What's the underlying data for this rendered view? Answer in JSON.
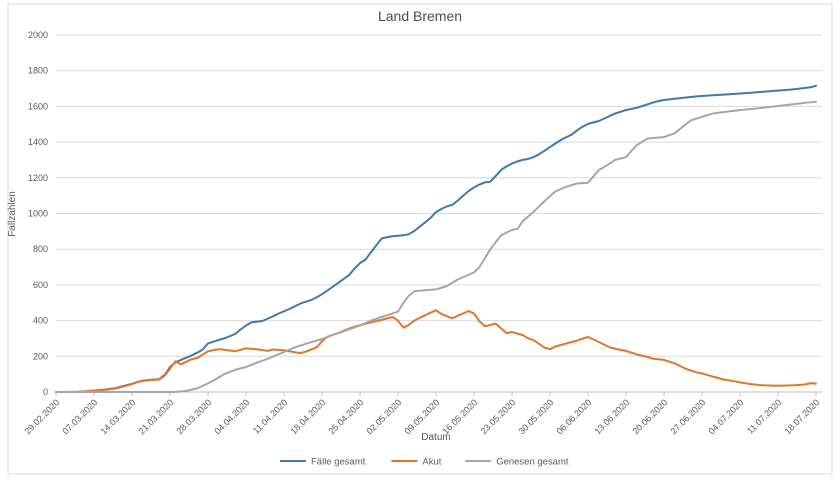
{
  "window": {
    "background_color": "#ffffff",
    "frame_border_color": "#d9d9d9"
  },
  "styles": {
    "gridline_color": "#d9d9d9",
    "axis_line_color": "#bfbfbf",
    "text_color": "#595959",
    "line_width": 2
  },
  "chart_data": {
    "type": "line",
    "title": "Land Bremen",
    "xlabel": "Datum",
    "ylabel": "Fallzahlen",
    "ylim": [
      0,
      2000
    ],
    "y_tick_step": 200,
    "y_tick_labels": [
      "0",
      "200",
      "400",
      "600",
      "800",
      "1000",
      "1200",
      "1400",
      "1600",
      "1800",
      "2000"
    ],
    "x_tick_labels": [
      "29.02.2020",
      "07.03.2020",
      "14.03.2020",
      "21.03.2020",
      "28.03.2020",
      "04.04.2020",
      "11.04.2020",
      "18.04.2020",
      "25.04.2020",
      "02.05.2020",
      "09.05.2020",
      "16.05.2020",
      "23.05.2020",
      "30.05.2020",
      "06.06.2020",
      "13.06.2020",
      "20.06.2020",
      "27.06.2020",
      "04.07.2020",
      "11.07.2020",
      "18.07.2020"
    ],
    "x_ticks_days": [
      0,
      7,
      14,
      21,
      28,
      35,
      42,
      49,
      56,
      63,
      70,
      77,
      84,
      91,
      98,
      105,
      112,
      119,
      126,
      133,
      140
    ],
    "x_domain_days": [
      0,
      140
    ],
    "grid": "horizontal",
    "legend_position": "bottom",
    "series": [
      {
        "name": "Fälle gesamt",
        "color": "#4179ab",
        "points": [
          [
            0,
            0
          ],
          [
            4,
            1
          ],
          [
            5,
            3
          ],
          [
            7,
            8
          ],
          [
            9,
            14
          ],
          [
            11,
            22
          ],
          [
            12,
            30
          ],
          [
            14,
            46
          ],
          [
            15,
            56
          ],
          [
            16,
            64
          ],
          [
            17,
            67
          ],
          [
            19,
            72
          ],
          [
            20,
            95
          ],
          [
            21,
            140
          ],
          [
            22,
            165
          ],
          [
            23,
            180
          ],
          [
            25,
            205
          ],
          [
            26,
            220
          ],
          [
            27,
            238
          ],
          [
            28,
            272
          ],
          [
            29,
            282
          ],
          [
            30,
            292
          ],
          [
            31,
            300
          ],
          [
            33,
            325
          ],
          [
            34,
            350
          ],
          [
            35,
            372
          ],
          [
            36,
            390
          ],
          [
            38,
            398
          ],
          [
            40,
            424
          ],
          [
            41,
            440
          ],
          [
            43,
            465
          ],
          [
            44,
            480
          ],
          [
            45,
            495
          ],
          [
            47,
            515
          ],
          [
            48,
            530
          ],
          [
            49,
            548
          ],
          [
            50,
            568
          ],
          [
            51,
            590
          ],
          [
            52,
            612
          ],
          [
            54,
            655
          ],
          [
            55,
            692
          ],
          [
            56,
            722
          ],
          [
            57,
            742
          ],
          [
            58,
            782
          ],
          [
            59,
            822
          ],
          [
            60,
            860
          ],
          [
            61,
            868
          ],
          [
            62,
            872
          ],
          [
            64,
            878
          ],
          [
            65,
            884
          ],
          [
            66,
            902
          ],
          [
            67,
            926
          ],
          [
            68,
            950
          ],
          [
            69,
            976
          ],
          [
            70,
            1008
          ],
          [
            71,
            1026
          ],
          [
            72,
            1040
          ],
          [
            73,
            1048
          ],
          [
            74,
            1072
          ],
          [
            75,
            1100
          ],
          [
            76,
            1126
          ],
          [
            77,
            1146
          ],
          [
            78,
            1162
          ],
          [
            79,
            1174
          ],
          [
            80,
            1178
          ],
          [
            81,
            1210
          ],
          [
            82,
            1244
          ],
          [
            83,
            1264
          ],
          [
            84,
            1280
          ],
          [
            85,
            1292
          ],
          [
            86,
            1300
          ],
          [
            87,
            1306
          ],
          [
            88,
            1316
          ],
          [
            89,
            1332
          ],
          [
            90,
            1352
          ],
          [
            91,
            1372
          ],
          [
            92,
            1392
          ],
          [
            93,
            1412
          ],
          [
            94,
            1428
          ],
          [
            95,
            1442
          ],
          [
            96,
            1466
          ],
          [
            97,
            1486
          ],
          [
            98,
            1502
          ],
          [
            100,
            1518
          ],
          [
            101,
            1532
          ],
          [
            102,
            1546
          ],
          [
            103,
            1560
          ],
          [
            104,
            1570
          ],
          [
            105,
            1580
          ],
          [
            107,
            1592
          ],
          [
            108,
            1602
          ],
          [
            109,
            1612
          ],
          [
            110,
            1622
          ],
          [
            111,
            1630
          ],
          [
            112,
            1636
          ],
          [
            114,
            1643
          ],
          [
            116,
            1650
          ],
          [
            118,
            1656
          ],
          [
            121,
            1662
          ],
          [
            123,
            1666
          ],
          [
            125,
            1670
          ],
          [
            128,
            1677
          ],
          [
            130,
            1681
          ],
          [
            132,
            1686
          ],
          [
            135,
            1693
          ],
          [
            137,
            1700
          ],
          [
            139,
            1707
          ],
          [
            140,
            1716
          ]
        ]
      },
      {
        "name": "Akut",
        "color": "#e0762c",
        "points": [
          [
            0,
            0
          ],
          [
            4,
            0
          ],
          [
            5,
            2
          ],
          [
            7,
            8
          ],
          [
            9,
            12
          ],
          [
            11,
            20
          ],
          [
            12,
            28
          ],
          [
            14,
            44
          ],
          [
            15,
            55
          ],
          [
            16,
            62
          ],
          [
            17,
            66
          ],
          [
            19,
            70
          ],
          [
            20,
            90
          ],
          [
            21,
            130
          ],
          [
            22,
            172
          ],
          [
            23,
            155
          ],
          [
            24,
            170
          ],
          [
            25,
            184
          ],
          [
            26,
            190
          ],
          [
            28,
            228
          ],
          [
            30,
            240
          ],
          [
            31,
            237
          ],
          [
            33,
            228
          ],
          [
            35,
            244
          ],
          [
            37,
            240
          ],
          [
            39,
            230
          ],
          [
            40,
            238
          ],
          [
            42,
            234
          ],
          [
            43,
            228
          ],
          [
            45,
            218
          ],
          [
            46,
            226
          ],
          [
            48,
            250
          ],
          [
            49,
            284
          ],
          [
            50,
            310
          ],
          [
            52,
            330
          ],
          [
            53,
            344
          ],
          [
            54,
            356
          ],
          [
            55,
            366
          ],
          [
            56,
            374
          ],
          [
            58,
            390
          ],
          [
            60,
            404
          ],
          [
            62,
            420
          ],
          [
            63,
            400
          ],
          [
            64,
            360
          ],
          [
            65,
            376
          ],
          [
            66,
            400
          ],
          [
            68,
            430
          ],
          [
            70,
            458
          ],
          [
            71,
            437
          ],
          [
            73,
            413
          ],
          [
            75,
            440
          ],
          [
            76,
            454
          ],
          [
            77,
            440
          ],
          [
            78,
            396
          ],
          [
            79,
            368
          ],
          [
            81,
            383
          ],
          [
            83,
            330
          ],
          [
            84,
            336
          ],
          [
            86,
            318
          ],
          [
            87,
            300
          ],
          [
            88,
            290
          ],
          [
            90,
            248
          ],
          [
            91,
            240
          ],
          [
            92,
            255
          ],
          [
            94,
            272
          ],
          [
            96,
            288
          ],
          [
            98,
            308
          ],
          [
            100,
            280
          ],
          [
            102,
            250
          ],
          [
            104,
            236
          ],
          [
            105,
            230
          ],
          [
            107,
            210
          ],
          [
            109,
            196
          ],
          [
            110,
            186
          ],
          [
            112,
            180
          ],
          [
            114,
            160
          ],
          [
            116,
            130
          ],
          [
            118,
            110
          ],
          [
            119,
            104
          ],
          [
            121,
            86
          ],
          [
            123,
            70
          ],
          [
            125,
            60
          ],
          [
            126,
            54
          ],
          [
            128,
            44
          ],
          [
            130,
            38
          ],
          [
            132,
            36
          ],
          [
            134,
            36
          ],
          [
            136,
            38
          ],
          [
            138,
            42
          ],
          [
            139,
            50
          ],
          [
            140,
            46
          ]
        ]
      },
      {
        "name": "Genesen gesamt",
        "color": "#a6a6a6",
        "points": [
          [
            0,
            0
          ],
          [
            22,
            0
          ],
          [
            24,
            6
          ],
          [
            26,
            20
          ],
          [
            28,
            48
          ],
          [
            29,
            64
          ],
          [
            31,
            100
          ],
          [
            33,
            124
          ],
          [
            35,
            140
          ],
          [
            37,
            164
          ],
          [
            39,
            186
          ],
          [
            42,
            224
          ],
          [
            44,
            250
          ],
          [
            46,
            270
          ],
          [
            49,
            297
          ],
          [
            51,
            320
          ],
          [
            53,
            340
          ],
          [
            56,
            372
          ],
          [
            58,
            400
          ],
          [
            60,
            420
          ],
          [
            63,
            450
          ],
          [
            64,
            500
          ],
          [
            65,
            540
          ],
          [
            66,
            564
          ],
          [
            68,
            570
          ],
          [
            70,
            575
          ],
          [
            72,
            594
          ],
          [
            74,
            630
          ],
          [
            77,
            670
          ],
          [
            78,
            700
          ],
          [
            80,
            800
          ],
          [
            82,
            878
          ],
          [
            84,
            908
          ],
          [
            85,
            914
          ],
          [
            86,
            958
          ],
          [
            88,
            1010
          ],
          [
            90,
            1070
          ],
          [
            92,
            1124
          ],
          [
            94,
            1150
          ],
          [
            96,
            1168
          ],
          [
            98,
            1172
          ],
          [
            100,
            1244
          ],
          [
            101,
            1260
          ],
          [
            103,
            1300
          ],
          [
            105,
            1316
          ],
          [
            106,
            1350
          ],
          [
            107,
            1384
          ],
          [
            109,
            1420
          ],
          [
            112,
            1428
          ],
          [
            114,
            1450
          ],
          [
            116,
            1500
          ],
          [
            117,
            1522
          ],
          [
            119,
            1542
          ],
          [
            121,
            1560
          ],
          [
            124,
            1572
          ],
          [
            126,
            1579
          ],
          [
            129,
            1588
          ],
          [
            131,
            1595
          ],
          [
            133,
            1602
          ],
          [
            136,
            1613
          ],
          [
            138,
            1620
          ],
          [
            140,
            1626
          ]
        ]
      }
    ]
  }
}
